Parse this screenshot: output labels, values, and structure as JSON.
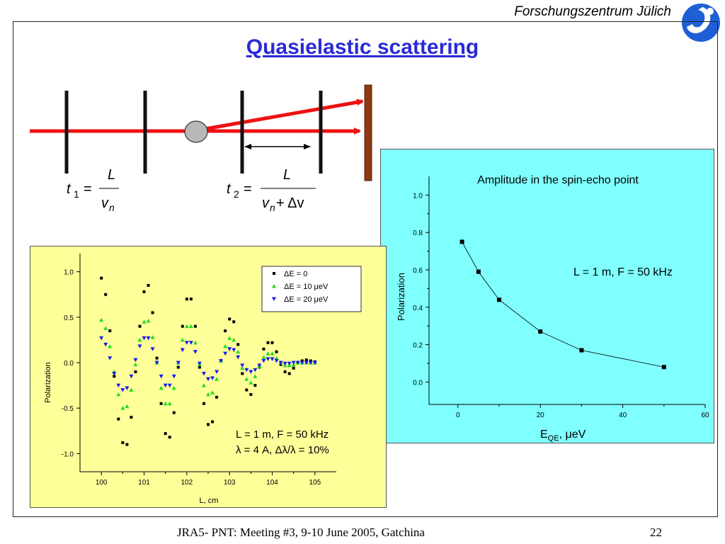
{
  "header": {
    "institute": "Forschungszentrum Jülich"
  },
  "title": "Quasielastic scattering",
  "footer": {
    "meeting": "JRA5- PNT:  Meeting  #3,  9-10 June 2005, Gatchina",
    "page": "22"
  },
  "formulas": {
    "t1": {
      "lhs": "t",
      "lhs_sub": "1",
      "num": "L",
      "den": "v",
      "den_sub": "n"
    },
    "t2": {
      "lhs": "t",
      "lhs_sub": "2",
      "num": "L",
      "den": "v",
      "den_sub": "n",
      "den_tail": " + Δv"
    }
  },
  "colors": {
    "title": "#2a2ad8",
    "beam": "#ee1111",
    "wall": "#8b3a12",
    "left_bg": "#ffff99",
    "right_bg": "#80ffff"
  },
  "chart_data": [
    {
      "type": "scatter",
      "xlabel": "L, cm",
      "ylabel": "Polarization",
      "xlim": [
        99.5,
        105.5
      ],
      "ylim": [
        -1.2,
        1.2
      ],
      "xticks": [
        "100",
        "101",
        "102",
        "103",
        "104",
        "105"
      ],
      "yticks": [
        "1.0",
        "0.5",
        "0.0",
        "-0.5",
        "-1.0"
      ],
      "series": [
        {
          "name": "ΔE = 0",
          "color": "#000000",
          "marker": "square",
          "x": [
            100.0,
            100.1,
            100.2,
            100.3,
            100.4,
            100.5,
            100.6,
            100.7,
            100.8,
            100.9,
            101.0,
            101.1,
            101.2,
            101.3,
            101.4,
            101.5,
            101.6,
            101.7,
            101.8,
            101.9,
            102.0,
            102.1,
            102.2,
            102.3,
            102.4,
            102.5,
            102.6,
            102.7,
            102.8,
            102.9,
            103.0,
            103.1,
            103.2,
            103.3,
            103.4,
            103.5,
            103.6,
            103.7,
            103.8,
            103.9,
            104.0,
            104.1,
            104.2,
            104.3,
            104.4,
            104.5,
            104.6,
            104.7,
            104.8,
            104.9,
            105.0
          ],
          "y": [
            0.93,
            0.75,
            0.35,
            -0.15,
            -0.62,
            -0.88,
            -0.9,
            -0.6,
            -0.1,
            0.4,
            0.78,
            0.85,
            0.55,
            0.05,
            -0.45,
            -0.78,
            -0.82,
            -0.55,
            -0.05,
            0.4,
            0.7,
            0.7,
            0.4,
            -0.05,
            -0.45,
            -0.68,
            -0.65,
            -0.38,
            0.02,
            0.35,
            0.48,
            0.45,
            0.2,
            -0.12,
            -0.3,
            -0.35,
            -0.25,
            -0.05,
            0.15,
            0.22,
            0.22,
            0.12,
            -0.02,
            -0.1,
            -0.12,
            -0.06,
            0.0,
            0.02,
            0.03,
            0.02,
            0.01
          ]
        },
        {
          "name": "ΔE = 10 μeV",
          "color": "#22dd22",
          "marker": "triangle-up",
          "x": [
            100.0,
            100.1,
            100.2,
            100.3,
            100.4,
            100.5,
            100.6,
            100.7,
            100.8,
            100.9,
            101.0,
            101.1,
            101.2,
            101.3,
            101.4,
            101.5,
            101.6,
            101.7,
            101.8,
            101.9,
            102.0,
            102.1,
            102.2,
            102.3,
            102.4,
            102.5,
            102.6,
            102.7,
            102.8,
            102.9,
            103.0,
            103.1,
            103.2,
            103.3,
            103.4,
            103.5,
            103.6,
            103.7,
            103.8,
            103.9,
            104.0,
            104.1,
            104.2,
            104.3,
            104.4,
            104.5,
            104.6,
            104.7,
            104.8,
            104.9,
            105.0
          ],
          "y": [
            0.47,
            0.38,
            0.18,
            -0.1,
            -0.35,
            -0.5,
            -0.48,
            -0.3,
            -0.02,
            0.25,
            0.45,
            0.46,
            0.28,
            0.0,
            -0.28,
            -0.45,
            -0.45,
            -0.28,
            0.0,
            0.25,
            0.4,
            0.4,
            0.22,
            -0.02,
            -0.25,
            -0.35,
            -0.33,
            -0.18,
            0.02,
            0.18,
            0.27,
            0.25,
            0.12,
            -0.06,
            -0.18,
            -0.22,
            -0.15,
            -0.04,
            0.06,
            0.1,
            0.1,
            0.05,
            0.0,
            -0.03,
            -0.03,
            -0.02,
            0.0,
            0.0,
            0.0,
            0.0,
            0.0
          ]
        },
        {
          "name": "ΔE = 20 μeV",
          "color": "#1a1aee",
          "marker": "triangle-down",
          "x": [
            100.0,
            100.1,
            100.2,
            100.3,
            100.4,
            100.5,
            100.6,
            100.7,
            100.8,
            100.9,
            101.0,
            101.1,
            101.2,
            101.3,
            101.4,
            101.5,
            101.6,
            101.7,
            101.8,
            101.9,
            102.0,
            102.1,
            102.2,
            102.3,
            102.4,
            102.5,
            102.6,
            102.7,
            102.8,
            102.9,
            103.0,
            103.1,
            103.2,
            103.3,
            103.4,
            103.5,
            103.6,
            103.7,
            103.8,
            103.9,
            104.0,
            104.1,
            104.2,
            104.3,
            104.4,
            104.5,
            104.6,
            104.7,
            104.8,
            104.9,
            105.0
          ],
          "y": [
            0.27,
            0.2,
            0.05,
            -0.12,
            -0.25,
            -0.3,
            -0.28,
            -0.15,
            0.03,
            0.18,
            0.27,
            0.27,
            0.15,
            0.0,
            -0.15,
            -0.25,
            -0.25,
            -0.15,
            0.0,
            0.14,
            0.22,
            0.22,
            0.12,
            -0.01,
            -0.12,
            -0.18,
            -0.17,
            -0.1,
            0.02,
            0.1,
            0.15,
            0.14,
            0.06,
            -0.03,
            -0.08,
            -0.1,
            -0.08,
            -0.03,
            0.02,
            0.04,
            0.04,
            0.02,
            0.0,
            -0.01,
            -0.01,
            0.0,
            0.0,
            0.0,
            0.0,
            0.0,
            0.0
          ]
        }
      ],
      "annotations": [
        {
          "text": "L = 1 m,   F = 50 kHz",
          "color": "#ff0000"
        },
        {
          "text": "λ = 4 A,  Δλ/λ = 10%",
          "color": "#000000"
        }
      ],
      "legend": "top-right"
    },
    {
      "type": "line",
      "title": "Amplitude in the spin-echo point",
      "xlabel": "E",
      "xlabel_sub": "QE",
      "xlabel_tail": ", μeV",
      "ylabel": "Polarization",
      "xlim": [
        -7,
        60
      ],
      "ylim": [
        -0.12,
        1.1
      ],
      "xticks": [
        "0",
        "20",
        "40",
        "60"
      ],
      "yticks": [
        "1.0",
        "0.8",
        "0.6",
        "0.4",
        "0.2",
        "0.0"
      ],
      "x": [
        1,
        5,
        10,
        20,
        30,
        50
      ],
      "y": [
        0.75,
        0.59,
        0.44,
        0.27,
        0.17,
        0.08
      ],
      "annotations": [
        {
          "text": "L = 1 m,   F = 50 kHz",
          "color": "#000000"
        }
      ]
    }
  ]
}
